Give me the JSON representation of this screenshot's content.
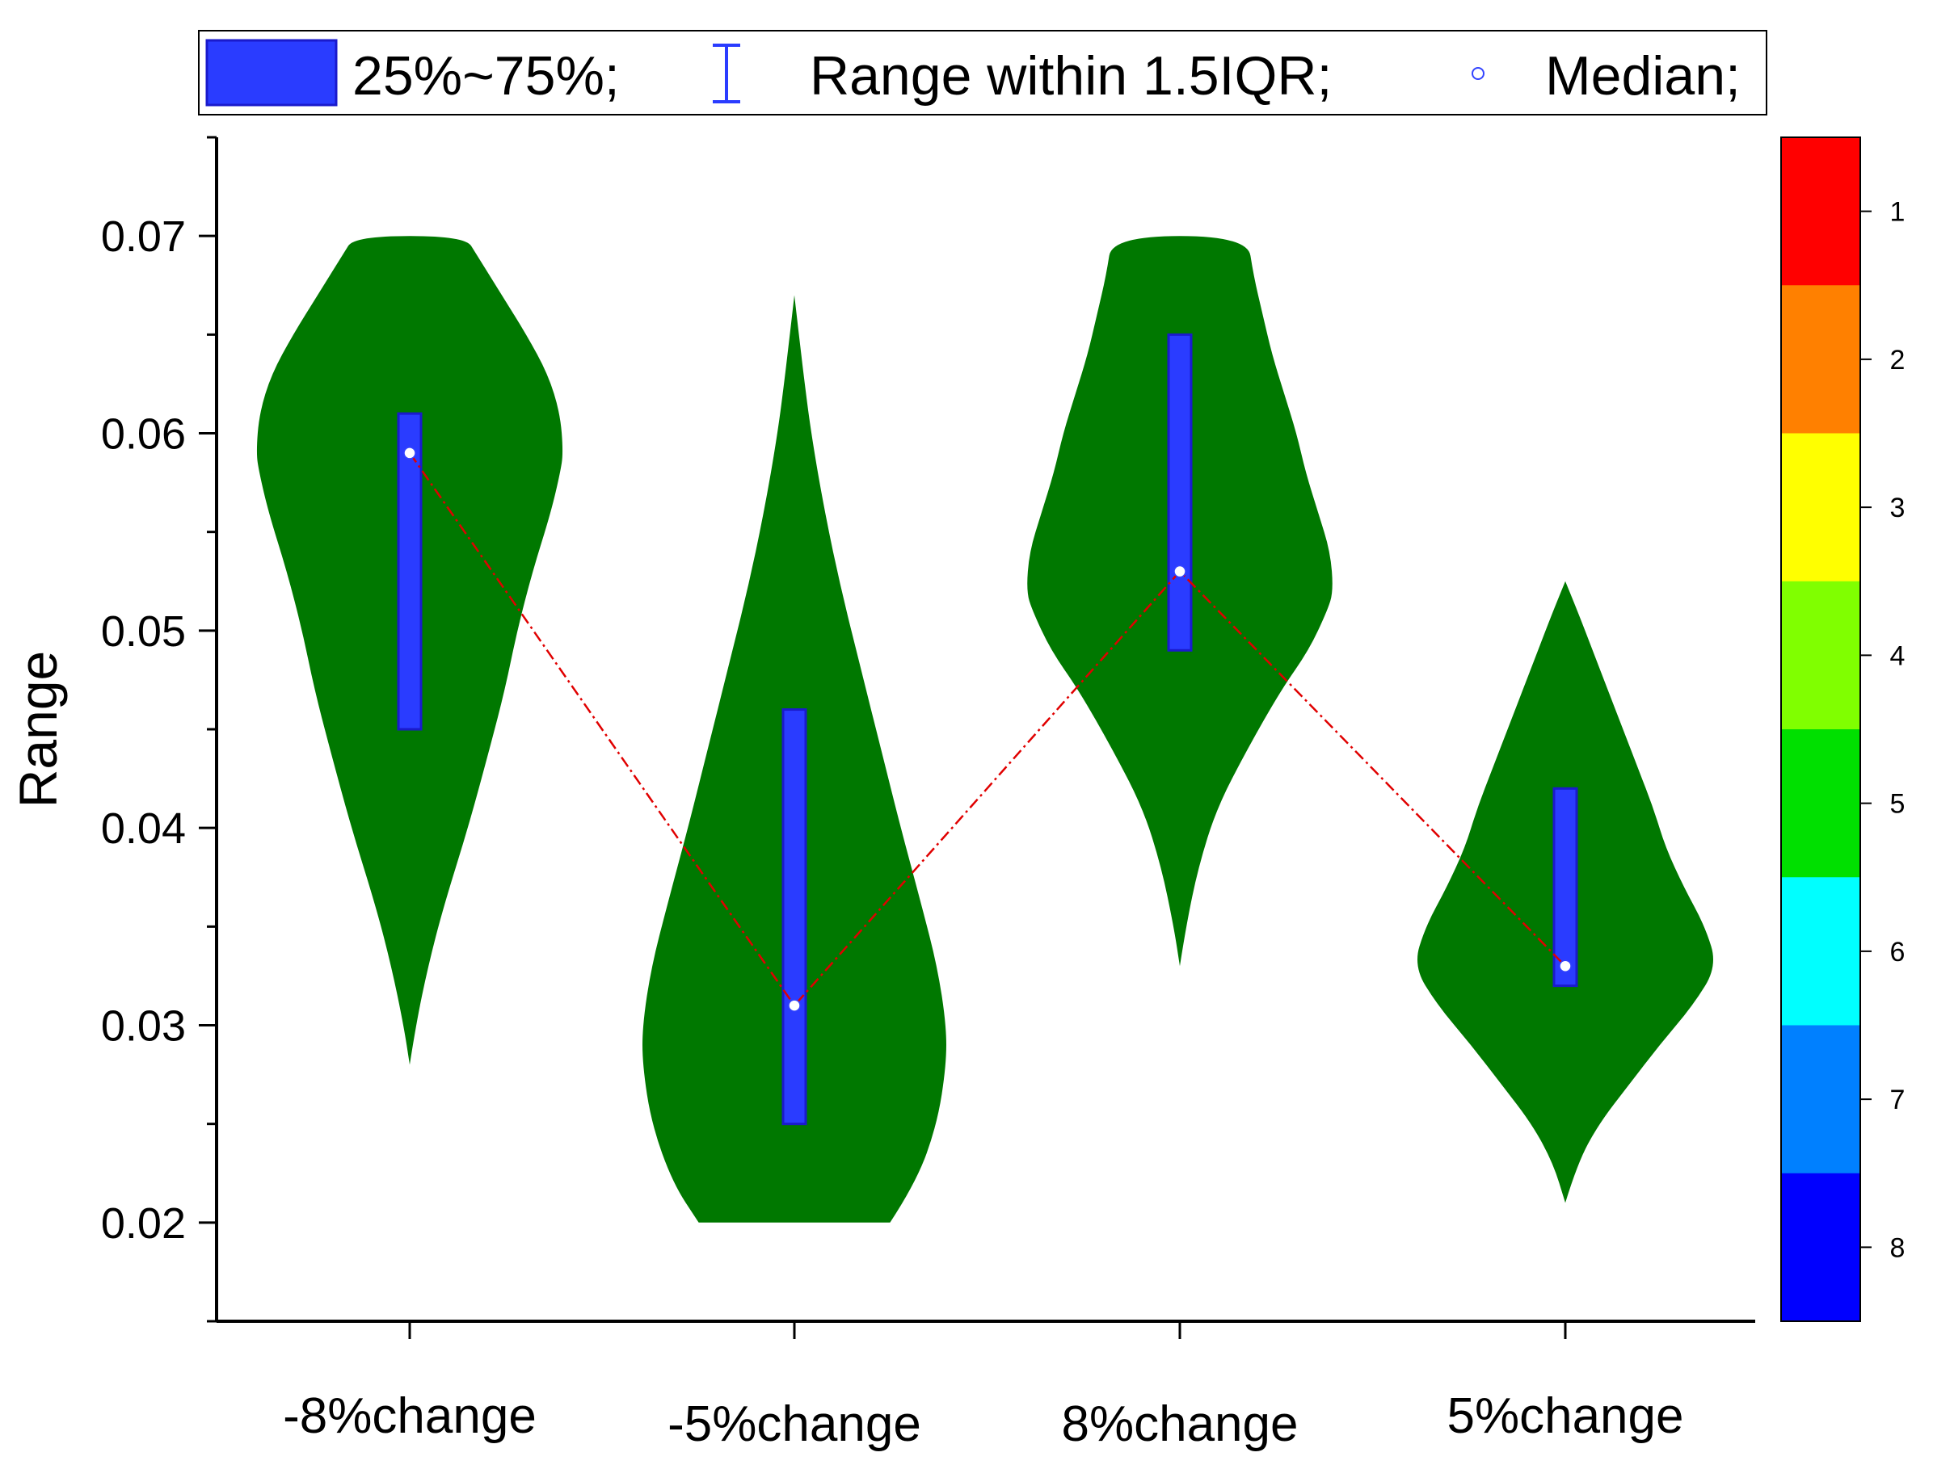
{
  "chart_data": {
    "type": "violin",
    "ylabel": "Range",
    "ylim": [
      0.015,
      0.075
    ],
    "yticks": [
      "0.02",
      "0.03",
      "0.04",
      "0.05",
      "0.06",
      "0.07"
    ],
    "categories": [
      "-8%change",
      "-5%change",
      "8%change",
      "5%change"
    ],
    "violins": [
      {
        "category": "-8%change",
        "min": 0.028,
        "max": 0.07,
        "q1": 0.045,
        "q3": 0.061,
        "median": 0.059,
        "profile": [
          [
            0.028,
            0.0
          ],
          [
            0.03,
            0.04
          ],
          [
            0.033,
            0.12
          ],
          [
            0.036,
            0.22
          ],
          [
            0.04,
            0.38
          ],
          [
            0.044,
            0.52
          ],
          [
            0.047,
            0.62
          ],
          [
            0.05,
            0.7
          ],
          [
            0.053,
            0.8
          ],
          [
            0.056,
            0.92
          ],
          [
            0.058,
            0.98
          ],
          [
            0.059,
            1.0
          ],
          [
            0.061,
            0.98
          ],
          [
            0.063,
            0.9
          ],
          [
            0.065,
            0.76
          ],
          [
            0.067,
            0.6
          ],
          [
            0.069,
            0.44
          ],
          [
            0.07,
            0.36
          ]
        ]
      },
      {
        "category": "-5%change",
        "min": 0.02,
        "max": 0.067,
        "q1": 0.025,
        "q3": 0.046,
        "median": 0.031,
        "profile": [
          [
            0.02,
            0.63
          ],
          [
            0.022,
            0.8
          ],
          [
            0.025,
            0.94
          ],
          [
            0.028,
            1.0
          ],
          [
            0.03,
            1.0
          ],
          [
            0.033,
            0.94
          ],
          [
            0.036,
            0.84
          ],
          [
            0.04,
            0.7
          ],
          [
            0.044,
            0.57
          ],
          [
            0.048,
            0.44
          ],
          [
            0.052,
            0.31
          ],
          [
            0.056,
            0.2
          ],
          [
            0.06,
            0.11
          ],
          [
            0.063,
            0.06
          ],
          [
            0.065,
            0.03
          ],
          [
            0.067,
            0.0
          ]
        ]
      },
      {
        "category": "8%change",
        "min": 0.033,
        "max": 0.07,
        "q1": 0.049,
        "q3": 0.065,
        "median": 0.053,
        "profile": [
          [
            0.033,
            0.0
          ],
          [
            0.035,
            0.04
          ],
          [
            0.038,
            0.12
          ],
          [
            0.041,
            0.24
          ],
          [
            0.044,
            0.44
          ],
          [
            0.047,
            0.66
          ],
          [
            0.049,
            0.84
          ],
          [
            0.051,
            0.96
          ],
          [
            0.052,
            1.0
          ],
          [
            0.054,
            0.98
          ],
          [
            0.056,
            0.9
          ],
          [
            0.058,
            0.82
          ],
          [
            0.06,
            0.76
          ],
          [
            0.062,
            0.68
          ],
          [
            0.064,
            0.6
          ],
          [
            0.066,
            0.54
          ],
          [
            0.068,
            0.48
          ],
          [
            0.07,
            0.44
          ]
        ]
      },
      {
        "category": "5%change",
        "min": 0.021,
        "max": 0.0525,
        "q1": 0.032,
        "q3": 0.042,
        "median": 0.033,
        "profile": [
          [
            0.021,
            0.0
          ],
          [
            0.023,
            0.08
          ],
          [
            0.025,
            0.22
          ],
          [
            0.027,
            0.42
          ],
          [
            0.029,
            0.62
          ],
          [
            0.031,
            0.84
          ],
          [
            0.033,
            1.0
          ],
          [
            0.035,
            0.92
          ],
          [
            0.037,
            0.78
          ],
          [
            0.039,
            0.66
          ],
          [
            0.041,
            0.58
          ],
          [
            0.043,
            0.48
          ],
          [
            0.045,
            0.38
          ],
          [
            0.047,
            0.28
          ],
          [
            0.049,
            0.18
          ],
          [
            0.051,
            0.08
          ],
          [
            0.0525,
            0.0
          ]
        ]
      }
    ],
    "legend": {
      "position": "top",
      "items": [
        {
          "label": "25%~75%;",
          "symbol": "box"
        },
        {
          "label": "Range within 1.5IQR;",
          "symbol": "whisker"
        },
        {
          "label": "Median;",
          "symbol": "circle"
        }
      ]
    },
    "colorbar": {
      "labels": [
        "1",
        "2",
        "3",
        "4",
        "5",
        "6",
        "7",
        "8"
      ],
      "colors": [
        "#ff0000",
        "#ff8000",
        "#ffff00",
        "#80ff00",
        "#00e000",
        "#00ffff",
        "#0080ff",
        "#0000ff"
      ]
    },
    "colors": {
      "violin": "#007800",
      "box": "#2a3cff",
      "box_edge": "#1a1acc",
      "median_line": "#e00000"
    },
    "grid": false
  }
}
